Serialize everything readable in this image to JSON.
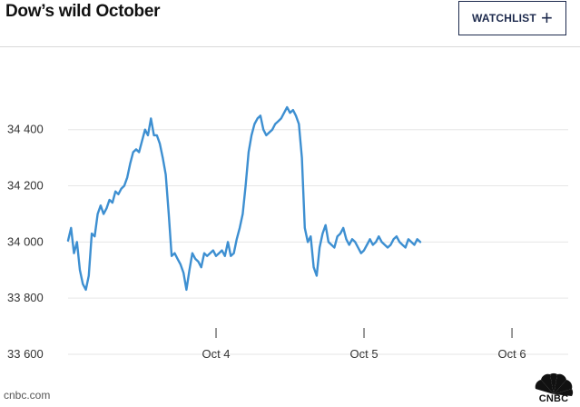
{
  "header": {
    "title": "Dow’s wild October",
    "watchlist_label": "WATCHLIST",
    "watchlist_icon": "plus-icon"
  },
  "footer": {
    "source": "cnbc.com",
    "brand": "CNBC"
  },
  "chart_data": {
    "type": "line",
    "title": "Dow’s wild October",
    "xlabel": "",
    "ylabel": "",
    "x_ticks": [
      "Oct 4",
      "Oct 5",
      "Oct 6"
    ],
    "x_range": [
      3.0,
      6.38
    ],
    "ylim": [
      33600,
      34700
    ],
    "y_ticks": [
      33600,
      33800,
      34000,
      34200,
      34400
    ],
    "y_tick_labels": [
      "33 600",
      "33 800",
      "34 000",
      "34 200",
      "34 400"
    ],
    "grid": "horizontal",
    "line_color": "#3d8fd1",
    "series": [
      {
        "name": "",
        "points": [
          [
            3.0,
            34005
          ],
          [
            3.02,
            34050
          ],
          [
            3.04,
            33960
          ],
          [
            3.06,
            34000
          ],
          [
            3.08,
            33900
          ],
          [
            3.1,
            33850
          ],
          [
            3.12,
            33830
          ],
          [
            3.14,
            33880
          ],
          [
            3.16,
            34030
          ],
          [
            3.18,
            34020
          ],
          [
            3.2,
            34100
          ],
          [
            3.22,
            34130
          ],
          [
            3.24,
            34100
          ],
          [
            3.26,
            34120
          ],
          [
            3.28,
            34150
          ],
          [
            3.3,
            34140
          ],
          [
            3.32,
            34180
          ],
          [
            3.34,
            34170
          ],
          [
            3.36,
            34190
          ],
          [
            3.38,
            34200
          ],
          [
            3.4,
            34230
          ],
          [
            3.42,
            34280
          ],
          [
            3.44,
            34320
          ],
          [
            3.46,
            34330
          ],
          [
            3.48,
            34320
          ],
          [
            3.5,
            34360
          ],
          [
            3.52,
            34400
          ],
          [
            3.54,
            34380
          ],
          [
            3.56,
            34440
          ],
          [
            3.58,
            34380
          ],
          [
            3.6,
            34380
          ],
          [
            3.62,
            34350
          ],
          [
            3.64,
            34300
          ],
          [
            3.66,
            34240
          ],
          [
            3.68,
            34100
          ],
          [
            3.7,
            33950
          ],
          [
            3.72,
            33960
          ],
          [
            3.74,
            33940
          ],
          [
            3.76,
            33920
          ],
          [
            3.78,
            33890
          ],
          [
            3.8,
            33830
          ],
          [
            3.82,
            33900
          ],
          [
            3.84,
            33960
          ],
          [
            3.86,
            33940
          ],
          [
            3.88,
            33930
          ],
          [
            3.9,
            33910
          ],
          [
            3.92,
            33960
          ],
          [
            3.94,
            33950
          ],
          [
            3.96,
            33960
          ],
          [
            3.98,
            33970
          ],
          [
            4.0,
            33950
          ],
          [
            4.02,
            33960
          ],
          [
            4.04,
            33970
          ],
          [
            4.06,
            33950
          ],
          [
            4.08,
            34000
          ],
          [
            4.1,
            33950
          ],
          [
            4.12,
            33960
          ],
          [
            4.14,
            34010
          ],
          [
            4.16,
            34050
          ],
          [
            4.18,
            34100
          ],
          [
            4.2,
            34200
          ],
          [
            4.22,
            34320
          ],
          [
            4.24,
            34380
          ],
          [
            4.26,
            34420
          ],
          [
            4.28,
            34440
          ],
          [
            4.3,
            34450
          ],
          [
            4.32,
            34400
          ],
          [
            4.34,
            34380
          ],
          [
            4.36,
            34390
          ],
          [
            4.38,
            34400
          ],
          [
            4.4,
            34420
          ],
          [
            4.42,
            34430
          ],
          [
            4.44,
            34440
          ],
          [
            4.46,
            34460
          ],
          [
            4.48,
            34480
          ],
          [
            4.5,
            34460
          ],
          [
            4.52,
            34470
          ],
          [
            4.54,
            34450
          ],
          [
            4.56,
            34420
          ],
          [
            4.58,
            34300
          ],
          [
            4.6,
            34050
          ],
          [
            4.62,
            34000
          ],
          [
            4.64,
            34020
          ],
          [
            4.66,
            33910
          ],
          [
            4.68,
            33880
          ],
          [
            4.7,
            33980
          ],
          [
            4.72,
            34030
          ],
          [
            4.74,
            34060
          ],
          [
            4.76,
            34000
          ],
          [
            4.78,
            33990
          ],
          [
            4.8,
            33980
          ],
          [
            4.82,
            34020
          ],
          [
            4.84,
            34030
          ],
          [
            4.86,
            34050
          ],
          [
            4.88,
            34010
          ],
          [
            4.9,
            33990
          ],
          [
            4.92,
            34010
          ],
          [
            4.94,
            34000
          ],
          [
            4.96,
            33980
          ],
          [
            4.98,
            33960
          ],
          [
            5.0,
            33970
          ],
          [
            5.02,
            33990
          ],
          [
            5.04,
            34010
          ],
          [
            5.06,
            33990
          ],
          [
            5.08,
            34000
          ],
          [
            5.1,
            34020
          ],
          [
            5.12,
            34000
          ],
          [
            5.14,
            33990
          ],
          [
            5.16,
            33980
          ],
          [
            5.18,
            33990
          ],
          [
            5.2,
            34010
          ],
          [
            5.22,
            34020
          ],
          [
            5.24,
            34000
          ],
          [
            5.26,
            33990
          ],
          [
            5.28,
            33980
          ],
          [
            5.3,
            34010
          ],
          [
            5.32,
            34000
          ],
          [
            5.34,
            33990
          ],
          [
            5.36,
            34010
          ],
          [
            5.38,
            34000
          ]
        ]
      }
    ]
  }
}
